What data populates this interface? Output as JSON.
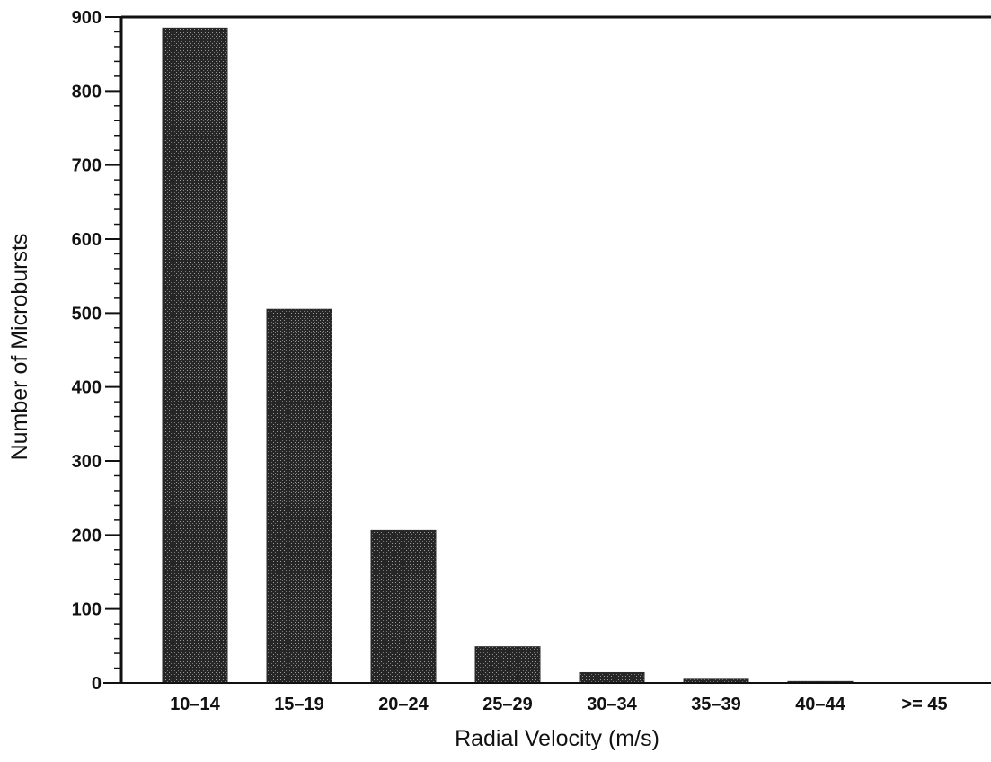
{
  "chart_data": {
    "type": "bar",
    "categories": [
      "10–14",
      "15–19",
      "20–24",
      "25–29",
      "30–34",
      "35–39",
      "40–44",
      ">= 45"
    ],
    "values": [
      885,
      505,
      206,
      49,
      14,
      5,
      2,
      0
    ],
    "title": "",
    "xlabel": "Radial Velocity (m/s)",
    "ylabel": "Number of Microbursts",
    "ylim": [
      0,
      900
    ],
    "yticks": [
      "0",
      "100",
      "200",
      "300",
      "400",
      "500",
      "600",
      "700",
      "800",
      "900"
    ],
    "grid": false,
    "legend": "none",
    "bar_color": "#2a2a2a",
    "bar_texture_color": "#8a8a8a"
  }
}
